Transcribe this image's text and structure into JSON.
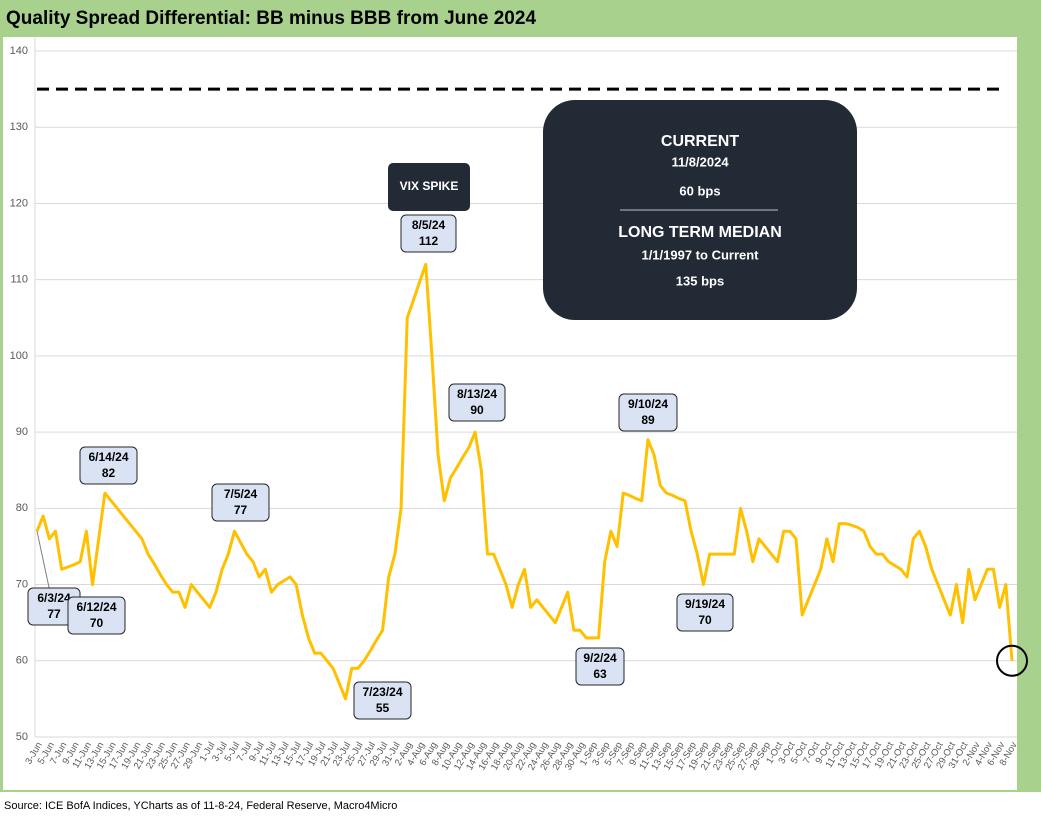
{
  "chart_data": {
    "type": "line",
    "title": "Quality Spread Differential: BB minus BBB from June 2024",
    "source": "Source: ICE BofA Indices, YCharts as of 11-8-24, Federal Reserve, Macro4Micro",
    "categories": [
      "3-Jun",
      null,
      "5-Jun",
      null,
      "7-Jun",
      null,
      "9-Jun",
      null,
      "11-Jun",
      null,
      "13-Jun",
      null,
      "15-Jun",
      null,
      "17-Jun",
      null,
      "19-Jun",
      null,
      "21-Jun",
      null,
      "23-Jun",
      null,
      "25-Jun",
      null,
      "27-Jun",
      null,
      "29-Jun",
      null,
      "1-Jul",
      null,
      "3-Jul",
      null,
      "5-Jul",
      null,
      "7-Jul",
      null,
      "9-Jul",
      null,
      "11-Jul",
      null,
      "13-Jul",
      null,
      "15-Jul",
      null,
      "17-Jul",
      null,
      "19-Jul",
      null,
      "21-Jul",
      null,
      "23-Jul",
      null,
      "25-Jul",
      null,
      "27-Jul",
      null,
      "29-Jul",
      null,
      "31-Jul",
      null,
      "2-Aug",
      null,
      "4-Aug",
      null,
      "6-Aug",
      null,
      "8-Aug",
      null,
      "10-Aug",
      null,
      "12-Aug",
      null,
      "14-Aug",
      null,
      "16-Aug",
      null,
      "18-Aug",
      null,
      "20-Aug",
      null,
      "22-Aug",
      null,
      "24-Aug",
      null,
      "26-Aug",
      null,
      "28-Aug",
      null,
      "30-Aug",
      null,
      "1-Sep",
      null,
      "3-Sep",
      null,
      "5-Sep",
      null,
      "7-Sep",
      null,
      "9-Sep",
      null,
      "11-Sep",
      null,
      "13-Sep",
      null,
      "15-Sep",
      null,
      "17-Sep",
      null,
      "19-Sep",
      null,
      "21-Sep",
      null,
      "23-Sep",
      null,
      "25-Sep",
      null,
      "27-Sep",
      null,
      "29-Sep",
      null,
      "1-Oct",
      null,
      "3-Oct",
      null,
      "5-Oct",
      null,
      "7-Oct",
      null,
      "9-Oct",
      null,
      "11-Oct",
      null,
      "13-Oct",
      null,
      "15-Oct",
      null,
      "17-Oct",
      null,
      "19-Oct",
      null,
      "21-Oct",
      null,
      "23-Oct",
      null,
      "25-Oct",
      null,
      "27-Oct",
      null,
      "29-Oct",
      null,
      "31-Oct",
      null,
      "2-Nov",
      null,
      "4-Nov",
      null,
      "6-Nov",
      null,
      "8-Nov"
    ],
    "values": [
      77,
      79,
      76,
      77,
      72,
      72.3,
      72.6,
      73,
      77,
      70,
      76,
      82,
      81,
      80,
      79,
      78,
      77,
      76,
      74,
      72.7,
      71.3,
      70,
      69,
      69,
      67,
      70,
      69,
      68,
      67,
      69,
      72,
      74,
      77,
      75.5,
      74,
      73,
      71,
      72,
      69,
      70,
      70.5,
      71,
      70,
      66,
      63,
      61,
      61,
      60,
      59,
      57,
      55,
      59,
      59,
      60,
      61.3,
      62.7,
      64,
      71,
      74,
      80,
      105,
      107.3,
      109.7,
      112,
      100,
      87,
      81,
      84,
      85.3,
      86.7,
      88,
      90,
      85,
      74,
      74,
      72,
      70,
      67,
      70,
      72,
      67,
      68,
      67,
      66,
      65,
      67,
      69,
      64,
      64,
      63,
      63,
      63,
      73,
      77,
      75,
      82,
      81.7,
      81.3,
      81,
      89,
      87,
      83,
      82,
      81.7,
      81.3,
      81,
      77,
      74,
      70,
      74,
      74,
      74,
      74,
      74,
      80,
      77,
      73,
      76,
      75,
      74,
      73,
      77,
      77,
      76,
      66,
      68,
      70,
      72,
      76,
      73,
      78,
      78,
      77.8,
      77.5,
      77,
      75,
      74,
      74,
      73,
      72.5,
      72,
      71,
      76,
      77,
      75,
      72,
      70,
      68,
      66,
      70,
      65,
      72,
      68,
      70,
      72,
      72,
      67,
      70,
      60
    ],
    "color": "#ffc000",
    "ylim": [
      50,
      140
    ],
    "yticks": [
      50,
      60,
      70,
      80,
      90,
      100,
      110,
      120,
      130,
      140
    ],
    "grid": true,
    "median_value": 135,
    "annotations": [
      {
        "label": "6/3/24",
        "value": 77
      },
      {
        "label": "6/12/24",
        "value": 70
      },
      {
        "label": "6/14/24",
        "value": 82
      },
      {
        "label": "7/5/24",
        "value": 77
      },
      {
        "label": "7/23/24",
        "value": 55
      },
      {
        "label": "8/5/24",
        "value": 112
      },
      {
        "label": "8/13/24",
        "value": 90
      },
      {
        "label": "9/2/24",
        "value": 63
      },
      {
        "label": "9/10/24",
        "value": 89
      },
      {
        "label": "9/19/24",
        "value": 70
      }
    ],
    "event_label": "VIX SPIKE",
    "info_box": {
      "current_title": "CURRENT",
      "current_date": "11/8/2024",
      "current_value": "60 bps",
      "median_title": "LONG TERM MEDIAN",
      "median_period": "1/1/1997 to Current",
      "median_text": "135 bps"
    }
  }
}
